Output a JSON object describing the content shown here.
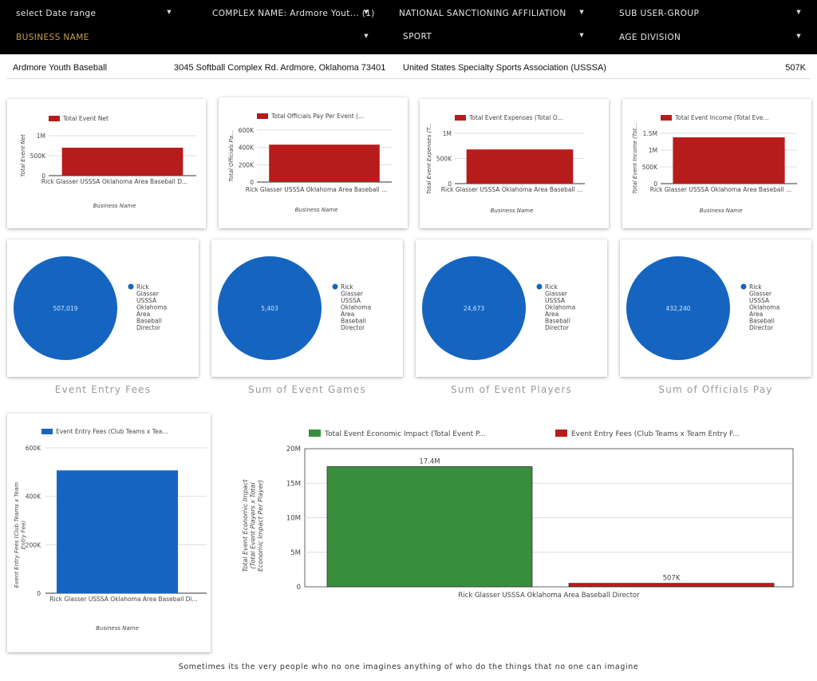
{
  "filters": [
    {
      "label": "select Date range"
    },
    {
      "label": "COMPLEX NAME: Ardmore Yout... (1)"
    },
    {
      "label": "NATIONAL SANCTIONING AFFILIATION"
    },
    {
      "label": "SUB USER-GROUP"
    },
    {
      "label": "BUSINESS NAME"
    },
    {
      "label": "SPORT"
    },
    {
      "label": "AGE DIVISION"
    }
  ],
  "info": {
    "complex": "Ardmore Youth Baseball",
    "address": "3045 Softball Complex Rd. Ardmore, Oklahoma 73401",
    "affiliation": "United States Specialty Sports Association (USSSA)",
    "total": "507K"
  },
  "colors": {
    "red": "#b71c1c",
    "blue": "#1565c0",
    "green": "#388e3c"
  },
  "bar_cards": [
    {
      "legend": "Total Event Net",
      "ylabel": "Total Event Net",
      "ticks": [
        "1M",
        "500K",
        "0"
      ],
      "category": "Rick Glasser USSSA Oklahoma Area Baseball D...",
      "xlabel": "Business Name"
    },
    {
      "legend": "Total Officials Pay Per Event (...",
      "ylabel": "Total Officials Pa...",
      "ticks": [
        "600K",
        "400K",
        "200K",
        "0"
      ],
      "category": "Rick Glasser USSSA Oklahoma Area Baseball ...",
      "xlabel": "Business Name"
    },
    {
      "legend": "Total Event Expenses (Total O...",
      "ylabel": "Total Event Expenses (T...",
      "ticks": [
        "1M",
        "500K",
        "0"
      ],
      "category": "Rick Glasser USSSA Oklahoma Area Baseball ...",
      "xlabel": "Business Name"
    },
    {
      "legend": "Total Event Income (Total Eve...",
      "ylabel": "Total Event Income (Tot...",
      "ticks": [
        "1.5M",
        "1M",
        "500K",
        "0"
      ],
      "category": "Rick Glasser USSSA Oklahoma Area Baseball ...",
      "xlabel": "Business Name"
    }
  ],
  "pie_cards": [
    {
      "value_label": "507,019",
      "legend": "Rick Glasser USSSA Oklahoma Area Baseball Director",
      "title": "Event Entry Fees"
    },
    {
      "value_label": "5,403",
      "legend": "Rick Glasser USSSA Oklahoma Area Baseball Director",
      "title": "Sum of Event Games"
    },
    {
      "value_label": "24,673",
      "legend": "Rick Glasser USSSA Oklahoma Area Baseball Director",
      "title": "Sum of Event Players"
    },
    {
      "value_label": "432,240",
      "legend": "Rick Glasser USSSA Oklahoma Area Baseball Director",
      "title": "Sum of Officials Pay"
    }
  ],
  "entry_card": {
    "legend": "Event Entry Fees (Club Teams x Tea...",
    "ylabel": "Event Entry Fees (Club Teams x Team Entry Fee)",
    "ticks": [
      "600K",
      "400K",
      "200K",
      "0"
    ],
    "category": "Rick Glasser USSSA Oklahoma Area Baseball Di...",
    "xlabel": "Business Name"
  },
  "impact_card": {
    "legend1": "Total Event Economic Impact (Total Event P...",
    "legend2": "Event Entry Fees (Club Teams x Team Entry F...",
    "ylabel": "Total Event Economic Impact (Total Event Players x Total Economic Impact Per Player)",
    "ticks": [
      "20M",
      "15M",
      "10M",
      "5M",
      "0"
    ],
    "category": "Rick Glasser USSSA Oklahoma Area Baseball Director"
  },
  "chart_data": [
    {
      "type": "bar",
      "categories": [
        "Rick Glasser USSSA Oklahoma Area Baseball D..."
      ],
      "series": [
        {
          "name": "Total Event Net",
          "values": [
            700000
          ]
        }
      ],
      "ylim": [
        0,
        1000000
      ]
    },
    {
      "type": "bar",
      "categories": [
        "Rick Glasser USSSA Oklahoma Area Baseball ..."
      ],
      "series": [
        {
          "name": "Total Officials Pay Per Event (...",
          "values": [
            432240
          ]
        }
      ],
      "ylim": [
        0,
        600000
      ]
    },
    {
      "type": "bar",
      "categories": [
        "Rick Glasser USSSA Oklahoma Area Baseball ..."
      ],
      "series": [
        {
          "name": "Total Event Expenses (Total O...",
          "values": [
            680000
          ]
        }
      ],
      "ylim": [
        0,
        1000000
      ]
    },
    {
      "type": "bar",
      "categories": [
        "Rick Glasser USSSA Oklahoma Area Baseball ..."
      ],
      "series": [
        {
          "name": "Total Event Income (Total Eve...",
          "values": [
            1380000
          ]
        }
      ],
      "ylim": [
        0,
        1500000
      ]
    },
    {
      "type": "pie",
      "labels": [
        "Rick Glasser USSSA Oklahoma Area Baseball Director"
      ],
      "values": [
        507019
      ],
      "title": "Event Entry Fees"
    },
    {
      "type": "pie",
      "labels": [
        "Rick Glasser USSSA Oklahoma Area Baseball Director"
      ],
      "values": [
        5403
      ],
      "title": "Sum of Event Games"
    },
    {
      "type": "pie",
      "labels": [
        "Rick Glasser USSSA Oklahoma Area Baseball Director"
      ],
      "values": [
        24673
      ],
      "title": "Sum of Event Players"
    },
    {
      "type": "pie",
      "labels": [
        "Rick Glasser USSSA Oklahoma Area Baseball Director"
      ],
      "values": [
        432240
      ],
      "title": "Sum of Officials Pay"
    },
    {
      "type": "bar",
      "categories": [
        "Rick Glasser USSSA Oklahoma Area Baseball Di..."
      ],
      "series": [
        {
          "name": "Event Entry Fees (Club Teams x Tea...",
          "values": [
            507019
          ]
        }
      ],
      "ylim": [
        0,
        600000
      ]
    },
    {
      "type": "bar",
      "categories": [
        "Rick Glasser USSSA Oklahoma Area Baseball Director"
      ],
      "series": [
        {
          "name": "Total Event Economic Impact (Total Event P...",
          "values": [
            17400000
          ],
          "label": "17.4M"
        },
        {
          "name": "Event Entry Fees (Club Teams x Team Entry F...",
          "values": [
            507000
          ],
          "label": "507K"
        }
      ],
      "ylim": [
        0,
        20000000
      ]
    }
  ],
  "footer": "Sometimes its the very people who no one imagines anything of who do the things that no one can imagine"
}
